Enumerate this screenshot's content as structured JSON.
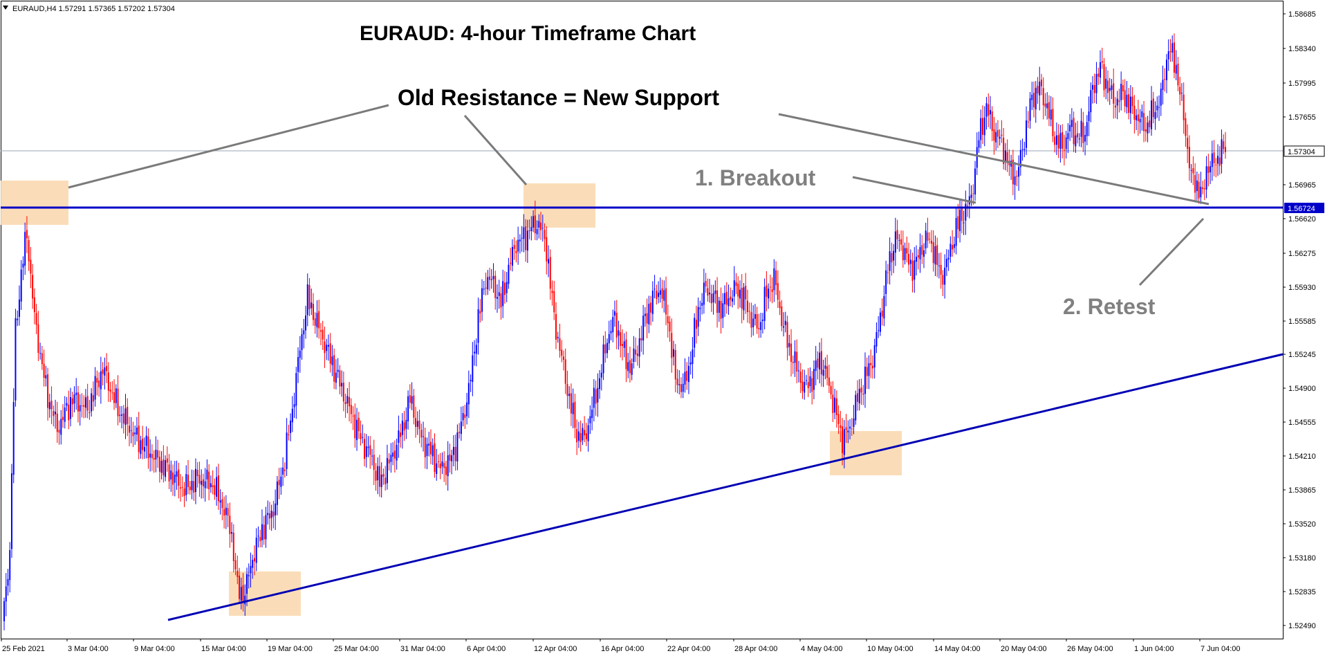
{
  "chart_data": {
    "type": "candlestick",
    "header": "EURAUD,H4  1.57291 1.57365 1.57202 1.57304",
    "title": "EURAUD: 4-hour Timeframe Chart",
    "y_ticks": [
      "1.58685",
      "1.58340",
      "1.57995",
      "1.57655",
      "1.57304",
      "1.56965",
      "1.56724",
      "1.56620",
      "1.56275",
      "1.55930",
      "1.55585",
      "1.55245",
      "1.54900",
      "1.54555",
      "1.54210",
      "1.53865",
      "1.53520",
      "1.53180",
      "1.52835",
      "1.52490"
    ],
    "ylim": [
      1.5241,
      1.5877
    ],
    "x_ticks": [
      "25 Feb 2021",
      "3 Mar 04:00",
      "9 Mar 04:00",
      "15 Mar 04:00",
      "19 Mar 04:00",
      "25 Mar 04:00",
      "31 Mar 04:00",
      "6 Apr 04:00",
      "12 Apr 04:00",
      "16 Apr 04:00",
      "22 Apr 04:00",
      "28 Apr 04:00",
      "4 May 04:00",
      "10 May 04:00",
      "14 May 04:00",
      "20 May 04:00",
      "26 May 04:00",
      "1 Jun 04:00",
      "7 Jun 04:00"
    ],
    "current_price": "1.57304",
    "support_level": "1.56724",
    "path_points": [
      [
        0,
        1.527
      ],
      [
        3,
        1.533
      ],
      [
        6,
        1.555
      ],
      [
        10,
        1.562
      ],
      [
        12,
        1.5645
      ],
      [
        16,
        1.556
      ],
      [
        22,
        1.549
      ],
      [
        28,
        1.545
      ],
      [
        36,
        1.548
      ],
      [
        44,
        1.547
      ],
      [
        52,
        1.551
      ],
      [
        60,
        1.547
      ],
      [
        70,
        1.544
      ],
      [
        80,
        1.542
      ],
      [
        88,
        1.5405
      ],
      [
        95,
        1.539
      ],
      [
        102,
        1.54
      ],
      [
        110,
        1.5395
      ],
      [
        116,
        1.537
      ],
      [
        120,
        1.5345
      ],
      [
        123,
        1.529
      ],
      [
        127,
        1.5285
      ],
      [
        130,
        1.5315
      ],
      [
        136,
        1.535
      ],
      [
        142,
        1.537
      ],
      [
        148,
        1.542
      ],
      [
        152,
        1.547
      ],
      [
        156,
        1.553
      ],
      [
        160,
        1.558
      ],
      [
        164,
        1.556
      ],
      [
        170,
        1.553
      ],
      [
        176,
        1.55
      ],
      [
        182,
        1.547
      ],
      [
        188,
        1.544
      ],
      [
        194,
        1.542
      ],
      [
        198,
        1.5395
      ],
      [
        204,
        1.542
      ],
      [
        210,
        1.545
      ],
      [
        214,
        1.548
      ],
      [
        220,
        1.544
      ],
      [
        224,
        1.543
      ],
      [
        230,
        1.541
      ],
      [
        236,
        1.542
      ],
      [
        242,
        1.546
      ],
      [
        246,
        1.55
      ],
      [
        250,
        1.556
      ],
      [
        254,
        1.56
      ],
      [
        258,
        1.5595
      ],
      [
        262,
        1.5575
      ],
      [
        266,
        1.561
      ],
      [
        270,
        1.5635
      ],
      [
        274,
        1.564
      ],
      [
        278,
        1.565
      ],
      [
        282,
        1.5655
      ],
      [
        286,
        1.563
      ],
      [
        290,
        1.556
      ],
      [
        294,
        1.552
      ],
      [
        298,
        1.548
      ],
      [
        302,
        1.5445
      ],
      [
        306,
        1.544
      ],
      [
        310,
        1.547
      ],
      [
        314,
        1.55
      ],
      [
        318,
        1.554
      ],
      [
        322,
        1.556
      ],
      [
        326,
        1.553
      ],
      [
        330,
        1.551
      ],
      [
        334,
        1.553
      ],
      [
        338,
        1.556
      ],
      [
        342,
        1.558
      ],
      [
        346,
        1.559
      ],
      [
        350,
        1.556
      ],
      [
        354,
        1.55
      ],
      [
        358,
        1.549
      ],
      [
        362,
        1.552
      ],
      [
        366,
        1.557
      ],
      [
        370,
        1.559
      ],
      [
        374,
        1.558
      ],
      [
        378,
        1.557
      ],
      [
        382,
        1.558
      ],
      [
        386,
        1.559
      ],
      [
        390,
        1.558
      ],
      [
        394,
        1.556
      ],
      [
        398,
        1.555
      ],
      [
        402,
        1.5585
      ],
      [
        406,
        1.56
      ],
      [
        410,
        1.556
      ],
      [
        414,
        1.553
      ],
      [
        418,
        1.551
      ],
      [
        422,
        1.549
      ],
      [
        426,
        1.55
      ],
      [
        430,
        1.552
      ],
      [
        434,
        1.55
      ],
      [
        438,
        1.547
      ],
      [
        442,
        1.544
      ],
      [
        446,
        1.545
      ],
      [
        450,
        1.548
      ],
      [
        454,
        1.55
      ],
      [
        458,
        1.552
      ],
      [
        462,
        1.556
      ],
      [
        466,
        1.561
      ],
      [
        470,
        1.564
      ],
      [
        474,
        1.563
      ],
      [
        478,
        1.561
      ],
      [
        482,
        1.562
      ],
      [
        486,
        1.564
      ],
      [
        490,
        1.563
      ],
      [
        494,
        1.56
      ],
      [
        498,
        1.562
      ],
      [
        502,
        1.565
      ],
      [
        506,
        1.5665
      ],
      [
        510,
        1.568
      ],
      [
        514,
        1.574
      ],
      [
        518,
        1.577
      ],
      [
        522,
        1.5745
      ],
      [
        526,
        1.5735
      ],
      [
        530,
        1.571
      ],
      [
        534,
        1.57
      ],
      [
        538,
        1.574
      ],
      [
        542,
        1.578
      ],
      [
        546,
        1.579
      ],
      [
        550,
        1.577
      ],
      [
        554,
        1.574
      ],
      [
        558,
        1.573
      ],
      [
        562,
        1.575
      ],
      [
        566,
        1.574
      ],
      [
        570,
        1.5745
      ],
      [
        574,
        1.579
      ],
      [
        578,
        1.581
      ],
      [
        582,
        1.579
      ],
      [
        586,
        1.5775
      ],
      [
        590,
        1.5785
      ],
      [
        594,
        1.577
      ],
      [
        598,
        1.576
      ],
      [
        602,
        1.575
      ],
      [
        606,
        1.5765
      ],
      [
        610,
        1.578
      ],
      [
        614,
        1.583
      ],
      [
        618,
        1.581
      ],
      [
        622,
        1.576
      ],
      [
        626,
        1.57
      ],
      [
        630,
        1.569
      ],
      [
        632,
        1.568
      ],
      [
        634,
        1.571
      ],
      [
        638,
        1.5715
      ],
      [
        642,
        1.5725
      ],
      [
        644,
        1.573
      ]
    ]
  },
  "annotations": {
    "old_resistance": "Old Resistance = New Support",
    "breakout": "1. Breakout",
    "retest": "2. Retest"
  },
  "colors": {
    "bull": "#0000ff",
    "bear": "#ff0000",
    "support_line": "#0000c8",
    "trend_line": "#0000b4",
    "highlight": "#f9d9b0",
    "pointer": "#7a7a7a",
    "current_line": "#9aa4b4"
  }
}
